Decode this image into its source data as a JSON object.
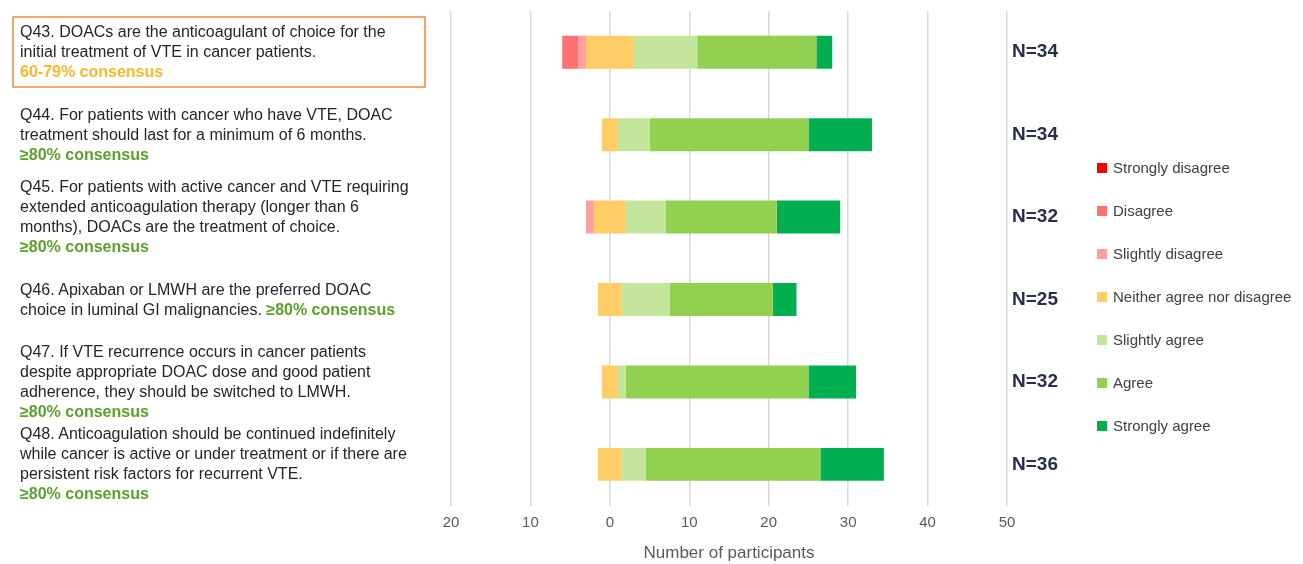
{
  "chart_data": {
    "type": "bar",
    "orientation": "horizontal",
    "categories": [
      "Q43. DOACs are the anticoagulant of choice for the initial treatment of VTE in cancer patients.",
      "Q44. For patients with cancer who have VTE, DOAC treatment should last for a minimum of 6 months.",
      "Q45. For patients with active cancer and VTE requiring extended anticoagulation therapy (longer than 6 months), DOACs are the treatment of choice.",
      "Q46. Apixaban or LMWH are the preferred DOAC choice in luminal GI malignancies.",
      "Q47. If VTE recurrence occurs in cancer patients despite appropriate DOAC dose and good patient adherence, they should be switched to LMWH.",
      "Q48. Anticoagulation should be continued indefinitely while cancer is active or under treatment or if there are persistent risk factors for recurrent VTE."
    ],
    "series": [
      {
        "name": "Strongly disagree",
        "color": "#ff0000",
        "values": [
          null,
          null,
          null,
          null,
          null,
          null
        ],
        "base": [
          null,
          null,
          null,
          null,
          null,
          null
        ]
      },
      {
        "name": "Disagree",
        "color": "#ff7070",
        "values": [
          2,
          null,
          null,
          null,
          null,
          null
        ],
        "base": [
          -6,
          null,
          null,
          null,
          null,
          null
        ]
      },
      {
        "name": "Slightly disagree",
        "color": "#ff9f9f",
        "values": [
          1,
          null,
          1,
          null,
          null,
          null
        ],
        "base": [
          -4,
          null,
          -3,
          null,
          null,
          null
        ]
      },
      {
        "name": "Neither agree nor disagree",
        "color": "#ffcc66",
        "values": [
          6,
          2,
          4,
          3,
          2,
          3
        ],
        "base": [
          -3,
          -1,
          -2,
          -1.5,
          -1,
          -1.5
        ]
      },
      {
        "name": "Slightly agree",
        "color": "#c4e59c",
        "values": [
          8,
          4,
          5,
          6,
          1,
          3
        ],
        "base": [
          3,
          1,
          2,
          1.5,
          1,
          1.5
        ]
      },
      {
        "name": "Agree",
        "color": "#92d050",
        "values": [
          15,
          20,
          14,
          13,
          23,
          22
        ],
        "base": [
          11,
          5,
          7,
          7.5,
          2,
          4.5
        ]
      },
      {
        "name": "Strongly agree",
        "color": "#00b050",
        "values": [
          2,
          8,
          8,
          3,
          6,
          8
        ],
        "base": [
          26,
          25,
          21,
          20.5,
          25,
          26.5
        ]
      }
    ],
    "annotations": [
      "60-79% consensus",
      "≥80% consensus",
      "≥80% consensus",
      "≥80% consensus",
      "≥80% consensus",
      "≥80% consensus",
      "N=34",
      "N=34",
      "N=32",
      "N=25",
      "N=32",
      "N=36"
    ],
    "xlabel": "Number of participants",
    "xlim": [
      -20,
      50
    ],
    "xticks": [
      {
        "value": -20,
        "label": "20"
      },
      {
        "value": -10,
        "label": "10"
      },
      0,
      10,
      20,
      30,
      40,
      50
    ],
    "grid": "x",
    "legend": "right"
  }
}
